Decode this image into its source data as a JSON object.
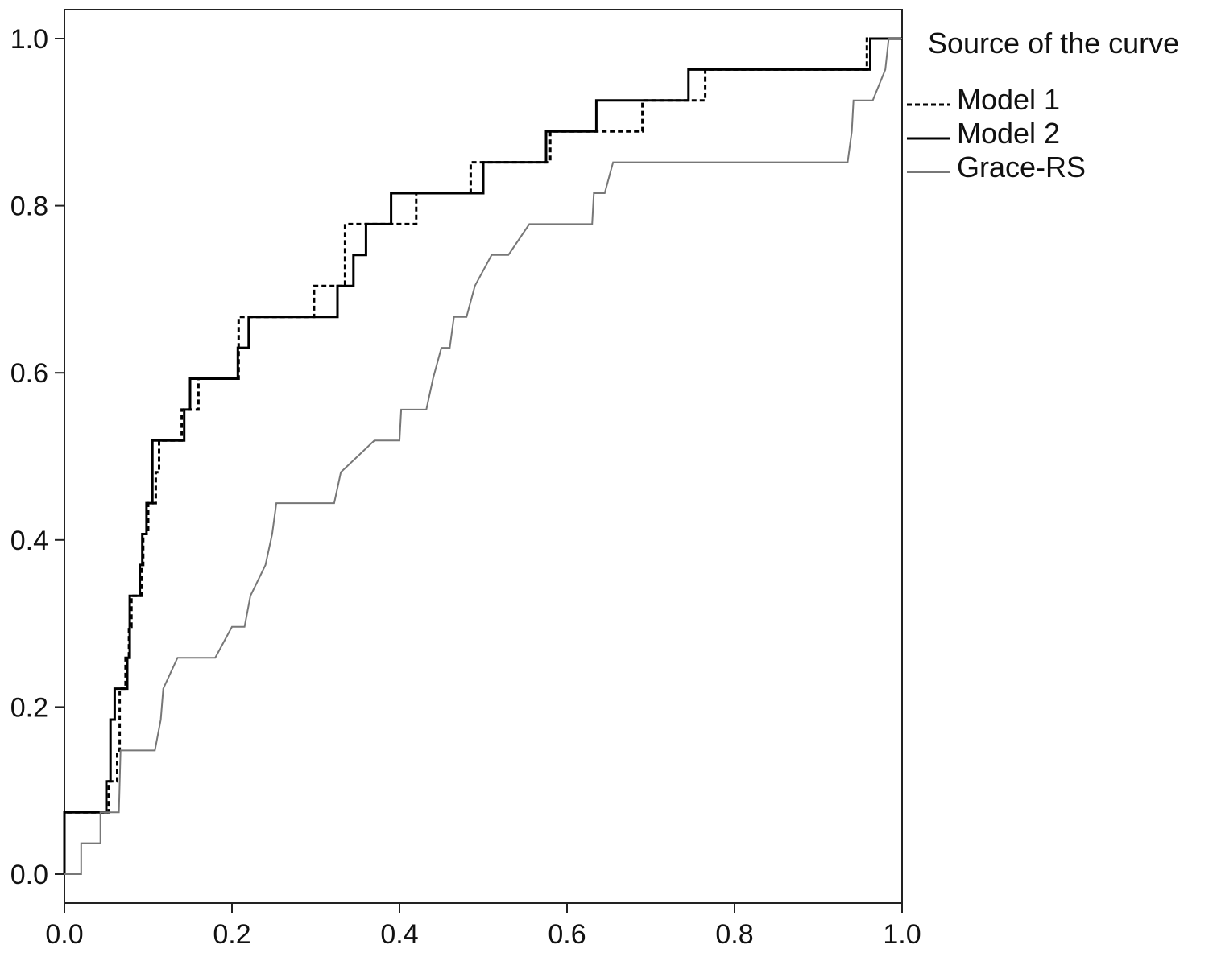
{
  "chart_data": {
    "type": "line",
    "title": "",
    "xlabel": "",
    "ylabel": "",
    "xlim": [
      0,
      1
    ],
    "ylim": [
      0,
      1
    ],
    "x_ticks": [
      "0.0",
      "0.2",
      "0.4",
      "0.6",
      "0.8",
      "1.0"
    ],
    "y_ticks": [
      "0.0",
      "0.2",
      "0.4",
      "0.6",
      "0.8",
      "1.0"
    ],
    "grid": false,
    "legend": {
      "title": "Source of the curve",
      "placement": "right",
      "entries": [
        "Model 1",
        "Model 2",
        "Grace-RS"
      ]
    },
    "series": [
      {
        "name": "Model 1",
        "style": "dashed",
        "color": "#000000",
        "points": [
          [
            0,
            0
          ],
          [
            0,
            0.074
          ],
          [
            0.053,
            0.074
          ],
          [
            0.053,
            0.111
          ],
          [
            0.063,
            0.111
          ],
          [
            0.063,
            0.148
          ],
          [
            0.066,
            0.148
          ],
          [
            0.066,
            0.222
          ],
          [
            0.073,
            0.222
          ],
          [
            0.073,
            0.259
          ],
          [
            0.077,
            0.259
          ],
          [
            0.077,
            0.296
          ],
          [
            0.08,
            0.296
          ],
          [
            0.08,
            0.333
          ],
          [
            0.092,
            0.333
          ],
          [
            0.092,
            0.37
          ],
          [
            0.094,
            0.37
          ],
          [
            0.094,
            0.407
          ],
          [
            0.1,
            0.407
          ],
          [
            0.1,
            0.444
          ],
          [
            0.109,
            0.444
          ],
          [
            0.109,
            0.481
          ],
          [
            0.113,
            0.481
          ],
          [
            0.113,
            0.519
          ],
          [
            0.14,
            0.519
          ],
          [
            0.14,
            0.556
          ],
          [
            0.16,
            0.556
          ],
          [
            0.16,
            0.593
          ],
          [
            0.208,
            0.593
          ],
          [
            0.208,
            0.667
          ],
          [
            0.298,
            0.667
          ],
          [
            0.298,
            0.704
          ],
          [
            0.335,
            0.704
          ],
          [
            0.335,
            0.778
          ],
          [
            0.375,
            0.778
          ],
          [
            0.4,
            0.778
          ],
          [
            0.41,
            0.778
          ],
          [
            0.42,
            0.778
          ],
          [
            0.42,
            0.815
          ],
          [
            0.485,
            0.815
          ],
          [
            0.485,
            0.852
          ],
          [
            0.58,
            0.852
          ],
          [
            0.58,
            0.889
          ],
          [
            0.69,
            0.889
          ],
          [
            0.69,
            0.926
          ],
          [
            0.765,
            0.926
          ],
          [
            0.765,
            0.963
          ],
          [
            0.958,
            0.963
          ],
          [
            0.958,
            1.0
          ],
          [
            1.0,
            1.0
          ]
        ]
      },
      {
        "name": "Model 2",
        "style": "solid",
        "color": "#000000",
        "points": [
          [
            0,
            0
          ],
          [
            0,
            0.074
          ],
          [
            0.05,
            0.074
          ],
          [
            0.05,
            0.111
          ],
          [
            0.055,
            0.111
          ],
          [
            0.055,
            0.185
          ],
          [
            0.06,
            0.185
          ],
          [
            0.06,
            0.222
          ],
          [
            0.075,
            0.222
          ],
          [
            0.075,
            0.259
          ],
          [
            0.078,
            0.259
          ],
          [
            0.078,
            0.333
          ],
          [
            0.09,
            0.333
          ],
          [
            0.09,
            0.37
          ],
          [
            0.093,
            0.37
          ],
          [
            0.093,
            0.407
          ],
          [
            0.098,
            0.407
          ],
          [
            0.098,
            0.444
          ],
          [
            0.105,
            0.444
          ],
          [
            0.105,
            0.519
          ],
          [
            0.143,
            0.519
          ],
          [
            0.143,
            0.556
          ],
          [
            0.15,
            0.556
          ],
          [
            0.15,
            0.593
          ],
          [
            0.207,
            0.593
          ],
          [
            0.207,
            0.63
          ],
          [
            0.22,
            0.63
          ],
          [
            0.22,
            0.667
          ],
          [
            0.326,
            0.667
          ],
          [
            0.326,
            0.704
          ],
          [
            0.345,
            0.704
          ],
          [
            0.345,
            0.741
          ],
          [
            0.36,
            0.741
          ],
          [
            0.36,
            0.778
          ],
          [
            0.39,
            0.778
          ],
          [
            0.39,
            0.815
          ],
          [
            0.5,
            0.815
          ],
          [
            0.5,
            0.852
          ],
          [
            0.575,
            0.852
          ],
          [
            0.575,
            0.889
          ],
          [
            0.635,
            0.889
          ],
          [
            0.635,
            0.926
          ],
          [
            0.745,
            0.926
          ],
          [
            0.745,
            0.963
          ],
          [
            0.962,
            0.963
          ],
          [
            0.962,
            1.0
          ],
          [
            1.0,
            1.0
          ]
        ]
      },
      {
        "name": "Grace-RS",
        "style": "solid",
        "color": "#777777",
        "points": [
          [
            0,
            0
          ],
          [
            0.02,
            0
          ],
          [
            0.02,
            0.037
          ],
          [
            0.043,
            0.037
          ],
          [
            0.043,
            0.074
          ],
          [
            0.065,
            0.074
          ],
          [
            0.067,
            0.148
          ],
          [
            0.108,
            0.148
          ],
          [
            0.115,
            0.185
          ],
          [
            0.118,
            0.222
          ],
          [
            0.135,
            0.259
          ],
          [
            0.18,
            0.259
          ],
          [
            0.2,
            0.296
          ],
          [
            0.215,
            0.296
          ],
          [
            0.222,
            0.333
          ],
          [
            0.24,
            0.37
          ],
          [
            0.248,
            0.407
          ],
          [
            0.253,
            0.444
          ],
          [
            0.322,
            0.444
          ],
          [
            0.33,
            0.481
          ],
          [
            0.37,
            0.519
          ],
          [
            0.4,
            0.519
          ],
          [
            0.402,
            0.556
          ],
          [
            0.432,
            0.556
          ],
          [
            0.44,
            0.593
          ],
          [
            0.45,
            0.63
          ],
          [
            0.46,
            0.63
          ],
          [
            0.465,
            0.667
          ],
          [
            0.48,
            0.667
          ],
          [
            0.49,
            0.704
          ],
          [
            0.51,
            0.741
          ],
          [
            0.53,
            0.741
          ],
          [
            0.555,
            0.778
          ],
          [
            0.63,
            0.778
          ],
          [
            0.632,
            0.815
          ],
          [
            0.645,
            0.815
          ],
          [
            0.655,
            0.852
          ],
          [
            0.935,
            0.852
          ],
          [
            0.94,
            0.889
          ],
          [
            0.942,
            0.926
          ],
          [
            0.965,
            0.926
          ],
          [
            0.98,
            0.963
          ],
          [
            0.984,
            1.0
          ],
          [
            1.0,
            1.0
          ]
        ]
      }
    ]
  }
}
